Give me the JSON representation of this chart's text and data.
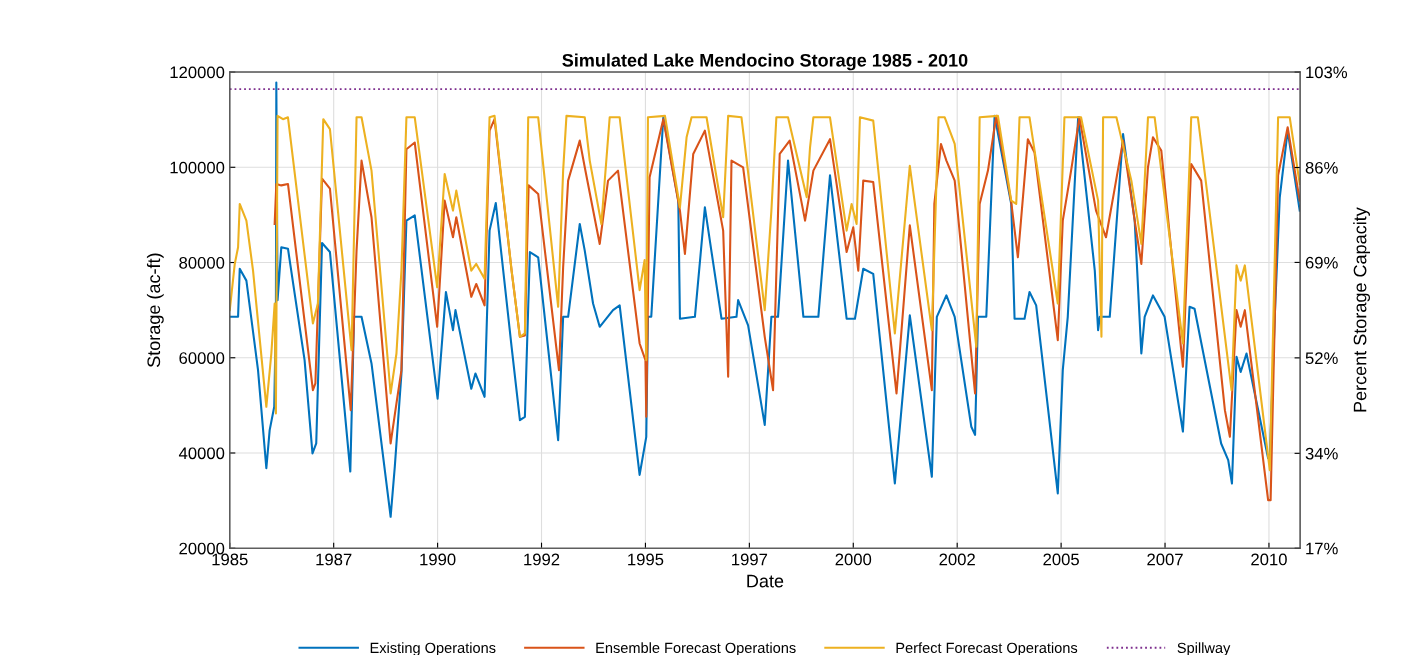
{
  "chart_data": {
    "type": "line",
    "title": "Simulated Lake Mendocino Storage 1985 - 2010",
    "xlabel": "Date",
    "ylabel": "Storage (ac-ft)",
    "y2label": "Percent Storage Capacity",
    "xlim": [
      1985,
      2010.75
    ],
    "xticks": [
      1985,
      {
        "value": 1987.5,
        "label": "1987"
      },
      1990,
      {
        "value": 1992.5,
        "label": "1992"
      },
      1995,
      {
        "value": 1997.5,
        "label": "1997"
      },
      2000,
      {
        "value": 2002.5,
        "label": "2002"
      },
      2005,
      {
        "value": 2007.5,
        "label": "2007"
      },
      2010
    ],
    "ylim": [
      20000,
      120000
    ],
    "yticks": [
      20000,
      40000,
      60000,
      80000,
      100000,
      120000
    ],
    "y2lim": [
      17.2,
      103
    ],
    "y2ticks": [
      {
        "value": 17.2,
        "label": "17%"
      },
      {
        "value": 34.3,
        "label": "34%"
      },
      {
        "value": 51.5,
        "label": "52%"
      },
      {
        "value": 68.7,
        "label": "69%"
      },
      {
        "value": 85.8,
        "label": "86%"
      },
      {
        "value": 103,
        "label": "103%"
      }
    ],
    "grid": true,
    "legend": "bottom",
    "line_style": "solid",
    "ref_lines": [
      {
        "axis": "y",
        "value": 116400,
        "label": "Spillway",
        "color": "#7e2f8e",
        "line_style": "dotted"
      }
    ],
    "series": [
      {
        "name": "Existing Operations",
        "color": "#0072bd",
        "x": [
          1985.0,
          1985.2,
          1985.24,
          1985.4,
          1985.68,
          1985.88,
          1985.96,
          1986.07,
          1986.11,
          1986.12,
          1986.15,
          1986.24,
          1986.4,
          1986.8,
          1986.99,
          1987.08,
          1987.22,
          1987.41,
          1987.9,
          1987.99,
          1988.17,
          1988.41,
          1988.87,
          1988.97,
          1989.13,
          1989.25,
          1989.45,
          1990.0,
          1990.2,
          1990.37,
          1990.43,
          1990.81,
          1990.91,
          1991.13,
          1991.25,
          1991.4,
          1991.78,
          1991.98,
          1992.1,
          1992.22,
          1992.42,
          1992.9,
          1993.02,
          1993.14,
          1993.42,
          1993.54,
          1993.74,
          1993.9,
          1994.22,
          1994.38,
          1994.86,
          1995.02,
          1995.06,
          1995.14,
          1995.43,
          1995.79,
          1995.83,
          1996.19,
          1996.43,
          1996.83,
          1997.19,
          1997.23,
          1997.47,
          1997.87,
          1998.03,
          1998.19,
          1998.43,
          1998.8,
          1999.16,
          1999.44,
          1999.84,
          2000.04,
          2000.24,
          2000.48,
          2001.0,
          2001.36,
          2001.89,
          2002.01,
          2002.24,
          2002.44,
          2002.84,
          2002.93,
          2003.0,
          2003.2,
          2003.4,
          2003.8,
          2003.88,
          2004.12,
          2004.24,
          2004.4,
          2004.92,
          2005.04,
          2005.16,
          2005.41,
          2005.81,
          2005.89,
          2005.93,
          2006.17,
          2006.49,
          2006.77,
          2006.93,
          2007.01,
          2007.21,
          2007.49,
          2007.93,
          2008.09,
          2008.21,
          2008.85,
          2009.02,
          2009.11,
          2009.22,
          2009.32,
          2009.46,
          2009.98,
          2010.02,
          2010.14,
          2010.26,
          2010.45,
          2010.74
        ],
        "values": [
          68600,
          68600,
          78700,
          76200,
          57400,
          36800,
          44800,
          49700,
          68600,
          117800,
          72100,
          83200,
          82900,
          59500,
          39900,
          42000,
          84100,
          82200,
          36100,
          68600,
          68600,
          58800,
          26600,
          37100,
          56700,
          88800,
          89900,
          51400,
          73800,
          65800,
          70000,
          53500,
          56700,
          51800,
          86700,
          92500,
          62300,
          46900,
          47600,
          82200,
          81100,
          42700,
          68600,
          68600,
          88100,
          82500,
          71400,
          66500,
          70000,
          71000,
          35400,
          43400,
          68600,
          68600,
          110500,
          93000,
          68200,
          68600,
          91600,
          68200,
          68600,
          72100,
          66800,
          45900,
          68600,
          68600,
          101400,
          68600,
          68600,
          98300,
          68200,
          68200,
          78700,
          77600,
          33600,
          68900,
          35000,
          68600,
          73100,
          68600,
          45500,
          43800,
          68600,
          68600,
          110800,
          92300,
          68200,
          68200,
          73800,
          71000,
          31500,
          57400,
          68600,
          110500,
          78300,
          65800,
          68600,
          68600,
          107000,
          88800,
          60900,
          68600,
          73100,
          68600,
          44500,
          70700,
          70300,
          42000,
          38500,
          33600,
          60200,
          57000,
          60900,
          38900,
          38900,
          68600,
          93700,
          107700,
          90900
        ]
      },
      {
        "name": "Ensemble Forecast Operations",
        "color": "#d95319",
        "x": [
          1986.08,
          1986.12,
          1986.24,
          1986.4,
          1987.0,
          1987.06,
          1987.22,
          1987.41,
          1987.91,
          1988.05,
          1988.17,
          1988.41,
          1988.87,
          1989.01,
          1989.13,
          1989.25,
          1989.45,
          1989.99,
          1990.17,
          1990.37,
          1990.45,
          1990.81,
          1990.93,
          1991.13,
          1991.25,
          1991.37,
          1991.78,
          1991.98,
          1992.1,
          1992.19,
          1992.42,
          1992.92,
          1993.02,
          1993.14,
          1993.42,
          1993.54,
          1993.9,
          1994.1,
          1994.34,
          1994.86,
          1995.0,
          1995.02,
          1995.1,
          1995.43,
          1995.83,
          1995.95,
          1996.15,
          1996.43,
          1996.87,
          1996.99,
          1997.07,
          1997.35,
          1997.87,
          1998.07,
          1998.23,
          1998.47,
          1998.84,
          1999.04,
          1999.44,
          1999.84,
          2000.0,
          2000.12,
          2000.24,
          2000.48,
          2001.04,
          2001.36,
          2001.89,
          2001.95,
          2002.11,
          2002.24,
          2002.44,
          2002.93,
          2003.04,
          2003.24,
          2003.44,
          2003.8,
          2003.96,
          2004.2,
          2004.36,
          2004.92,
          2005.04,
          2005.24,
          2005.44,
          2005.84,
          2006.08,
          2006.28,
          2006.49,
          2006.77,
          2006.93,
          2007.09,
          2007.21,
          2007.41,
          2007.93,
          2008.13,
          2008.37,
          2008.94,
          2009.06,
          2009.22,
          2009.32,
          2009.42,
          2009.98,
          2010.04,
          2010.22,
          2010.45,
          2010.74
        ],
        "values": [
          88100,
          96500,
          96200,
          96500,
          53200,
          54600,
          97600,
          95500,
          49000,
          82500,
          101400,
          89500,
          42000,
          50400,
          57400,
          103800,
          105200,
          66500,
          93000,
          85300,
          89500,
          72800,
          75500,
          71000,
          107700,
          110100,
          78300,
          64400,
          64700,
          96200,
          94400,
          57400,
          79000,
          97200,
          105600,
          100000,
          83900,
          97200,
          99300,
          63000,
          59500,
          47600,
          97900,
          110100,
          90900,
          81800,
          102800,
          107700,
          86700,
          56000,
          101400,
          100000,
          64400,
          53200,
          102800,
          105600,
          88800,
          99300,
          105900,
          82200,
          87400,
          78300,
          97200,
          96900,
          52500,
          87800,
          53200,
          92300,
          104900,
          101400,
          97200,
          52500,
          92300,
          99300,
          110800,
          92700,
          81100,
          105900,
          103100,
          63700,
          88800,
          99300,
          110500,
          90900,
          85300,
          95100,
          105600,
          88800,
          79700,
          100000,
          106300,
          103500,
          58100,
          100700,
          97200,
          49000,
          43400,
          70000,
          66500,
          70000,
          30100,
          30100,
          98300,
          108400,
          93000
        ]
      },
      {
        "name": "Perfect Forecast Operations",
        "color": "#edb120",
        "x": [
          1985.0,
          1985.12,
          1985.2,
          1985.24,
          1985.4,
          1985.56,
          1985.88,
          1986.0,
          1986.08,
          1986.11,
          1986.15,
          1986.28,
          1986.4,
          1987.0,
          1987.12,
          1987.25,
          1987.41,
          1987.93,
          1988.05,
          1988.17,
          1988.41,
          1988.87,
          1989.01,
          1989.13,
          1989.25,
          1989.45,
          1989.99,
          1990.17,
          1990.37,
          1990.45,
          1990.81,
          1990.93,
          1991.13,
          1991.25,
          1991.37,
          1991.78,
          1991.98,
          1992.1,
          1992.18,
          1992.42,
          1992.9,
          1993.02,
          1993.1,
          1993.54,
          1993.66,
          1993.94,
          1994.14,
          1994.38,
          1994.86,
          1994.98,
          1995.02,
          1995.06,
          1995.47,
          1995.83,
          1995.99,
          1996.11,
          1996.47,
          1996.87,
          1996.99,
          1997.31,
          1997.87,
          1998.03,
          1998.15,
          1998.43,
          1998.88,
          1998.96,
          1999.04,
          1999.44,
          1999.84,
          1999.96,
          2000.08,
          2000.16,
          2000.48,
          2001.0,
          2001.36,
          2001.89,
          2002.05,
          2002.2,
          2002.44,
          2002.96,
          2003.04,
          2003.48,
          2003.8,
          2003.92,
          2004.0,
          2004.24,
          2004.92,
          2005.08,
          2005.48,
          2005.89,
          2005.97,
          2006.01,
          2006.33,
          2006.69,
          2006.93,
          2007.09,
          2007.25,
          2007.93,
          2008.13,
          2008.29,
          2009.1,
          2009.22,
          2009.32,
          2009.42,
          2010.02,
          2010.22,
          2010.5,
          2010.74
        ],
        "values": [
          70000,
          79700,
          83200,
          92300,
          88800,
          78300,
          49700,
          60900,
          71400,
          48300,
          110800,
          110100,
          110500,
          67200,
          71400,
          110100,
          108000,
          61600,
          110500,
          110500,
          99300,
          52500,
          60900,
          78300,
          110500,
          110500,
          74800,
          98600,
          90900,
          95100,
          78300,
          79700,
          76600,
          110500,
          110800,
          78300,
          64400,
          65100,
          110500,
          110500,
          70700,
          99300,
          110800,
          110500,
          101400,
          88100,
          110500,
          110500,
          74200,
          80500,
          59500,
          110500,
          110800,
          91600,
          106300,
          110500,
          110500,
          89500,
          110800,
          110500,
          70000,
          90900,
          110500,
          110500,
          93700,
          104200,
          110500,
          110500,
          86700,
          92300,
          88100,
          110500,
          109800,
          65100,
          100300,
          65800,
          110500,
          110500,
          104900,
          62300,
          110500,
          110800,
          93000,
          92300,
          110500,
          110500,
          71400,
          110500,
          110500,
          93000,
          64400,
          110500,
          110500,
          97200,
          83900,
          110500,
          110500,
          63000,
          110500,
          110500,
          53200,
          79400,
          76200,
          79400,
          36400,
          110500,
          110500,
          96500
        ]
      }
    ]
  }
}
